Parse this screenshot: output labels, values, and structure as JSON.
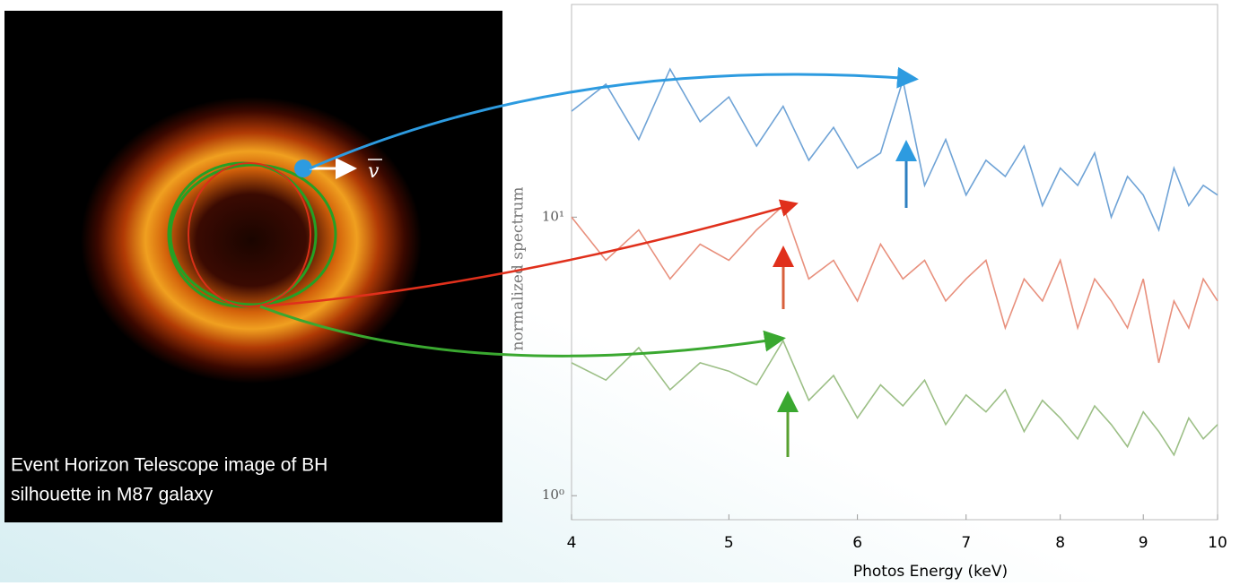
{
  "image": {
    "caption": [
      "Event Horizon Telescope image of BH",
      "silhouette in M87 galaxy"
    ],
    "velocity_label": "v"
  },
  "chart_data": {
    "type": "line",
    "x_label": "Photos Energy (keV)",
    "y_label": "normalized spectrum",
    "xscale": "log",
    "yscale": "log",
    "xlim": [
      4,
      10
    ],
    "xticks": [
      4,
      5,
      6,
      7,
      8,
      9,
      10
    ],
    "ylim": [
      0.82,
      58
    ],
    "yticks": [
      {
        "value": 1,
        "label": "10⁰"
      },
      {
        "value": 10,
        "label": "10¹"
      }
    ],
    "x": [
      4.0,
      4.2,
      4.4,
      4.6,
      4.8,
      5.0,
      5.2,
      5.4,
      5.6,
      5.8,
      6.0,
      6.2,
      6.4,
      6.6,
      6.8,
      7.0,
      7.2,
      7.4,
      7.6,
      7.8,
      8.0,
      8.2,
      8.4,
      8.6,
      8.8,
      9.0,
      9.2,
      9.4,
      9.6,
      9.8,
      10.0
    ],
    "series": [
      {
        "color": "#6fa3d6",
        "values": [
          24,
          30,
          19,
          34,
          22,
          27,
          18,
          25,
          16,
          21,
          15,
          17,
          31,
          13,
          19,
          12,
          16,
          14,
          18,
          11,
          15,
          13,
          17,
          10,
          14,
          12,
          9,
          15,
          11,
          13,
          12
        ]
      },
      {
        "color": "#e8907d",
        "values": [
          10,
          7,
          9,
          6,
          8,
          7,
          9,
          11,
          6,
          7,
          5,
          8,
          6,
          7,
          5,
          6,
          7,
          4,
          6,
          5,
          7,
          4,
          6,
          5,
          4,
          6,
          3,
          5,
          4,
          6,
          5
        ]
      },
      {
        "color": "#9cbf86",
        "values": [
          3,
          2.6,
          3.4,
          2.4,
          3,
          2.8,
          2.5,
          3.6,
          2.2,
          2.7,
          1.9,
          2.5,
          2.1,
          2.6,
          1.8,
          2.3,
          2,
          2.4,
          1.7,
          2.2,
          1.9,
          1.6,
          2.1,
          1.8,
          1.5,
          2,
          1.7,
          1.4,
          1.9,
          1.6,
          1.8
        ]
      }
    ]
  }
}
